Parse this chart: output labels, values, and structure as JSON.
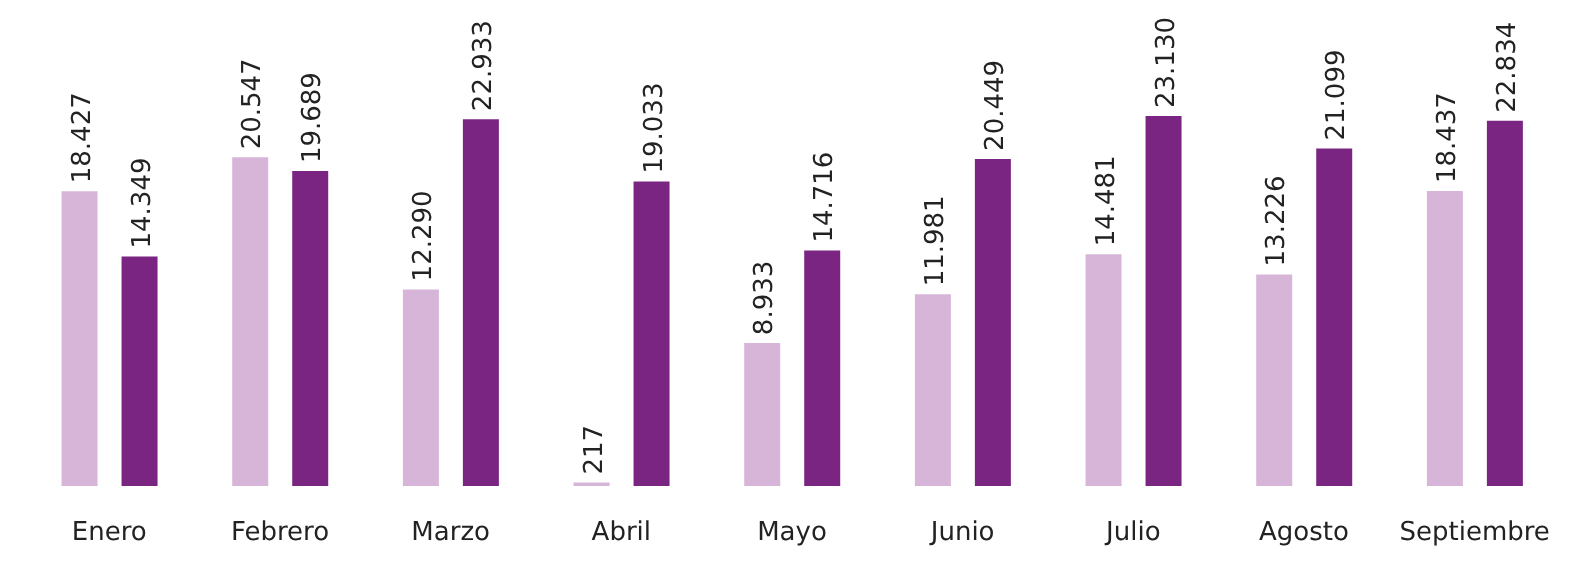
{
  "chart_data": {
    "type": "bar",
    "categories": [
      "Enero",
      "Febrero",
      "Marzo",
      "Abril",
      "Mayo",
      "Junio",
      "Julio",
      "Agosto",
      "Septiembre"
    ],
    "series": [
      {
        "color": "#d7b5d8",
        "values": [
          18427,
          20547,
          12290,
          217,
          8933,
          11981,
          14481,
          13226,
          18437
        ],
        "value_labels": [
          "18.427",
          "20.547",
          "12.290",
          "217",
          "8.933",
          "11.981",
          "14.481",
          "13.226",
          "18.437"
        ]
      },
      {
        "color": "#7b2583",
        "values": [
          14349,
          19689,
          22933,
          19033,
          14716,
          20449,
          23130,
          21099,
          22834
        ],
        "value_labels": [
          "14.349",
          "19.689",
          "22.933",
          "19.033",
          "14.716",
          "20.449",
          "23.130",
          "21.099",
          "22.834"
        ]
      }
    ],
    "grid": false,
    "legend": false
  }
}
